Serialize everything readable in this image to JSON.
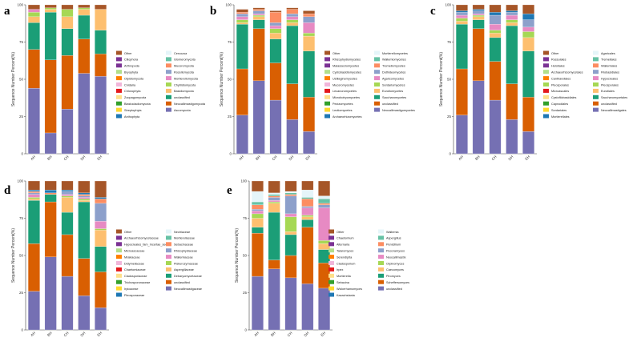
{
  "colors": {
    "Other": "#a65628",
    "c1": "#a6dba0",
    "c2": "#7b3294",
    "c3": "#b2df8a",
    "c4": "#ff7f00",
    "c5": "#f1b6da",
    "c6": "#e41a1c",
    "c7": "#fee08b",
    "c8": "#33a02c",
    "c9": "#ffd92f",
    "c10": "#1f78b4",
    "c11": "#e5f5f9",
    "c12": "#66c2a5",
    "c13": "#fc8d62",
    "c14": "#8da0cb",
    "c15": "#e78ac3",
    "c16": "#a6d854",
    "c17": "#fdbf6f",
    "c18": "#1b9e77",
    "c19": "#d95f02",
    "c20": "#7570b3"
  },
  "chart_data": [
    {
      "panel": "a",
      "type": "bar",
      "stacked": true,
      "title": "",
      "xlabel": "",
      "ylabel": "Sequence Number Percent(%)",
      "ylim": [
        0,
        100
      ],
      "yticks": [
        "0",
        "25",
        "50",
        "75",
        "100"
      ],
      "categories": [
        "AH",
        "BH",
        "CH",
        "DH",
        "EH"
      ],
      "legend_left": [
        "Other",
        "Ciliophora",
        "Arthropoda",
        "Bryophyta",
        "Olpidiomycota",
        "Cnidaria",
        "Chlorophyta",
        "Zoopagomycota",
        "Blastocladiomycota",
        "Streptophyta",
        "Anthophyta"
      ],
      "legend_right": [
        "Cercozoa",
        "Glomeromycota",
        "Mucoromycota",
        "Rozellomycota",
        "Mortierellomycota",
        "Chytridiomycota",
        "Basidiomycota",
        "unclassified",
        "Neocallimastigomycota",
        "Ascomycota"
      ],
      "series": [
        {
          "name": "Ascomycota",
          "values": [
            44,
            14,
            30,
            54,
            52
          ]
        },
        {
          "name": "Neocallimastigomycota",
          "values": [
            26,
            49,
            36,
            23,
            15
          ]
        },
        {
          "name": "unclassified",
          "values": [
            18,
            32,
            18,
            16,
            16
          ]
        },
        {
          "name": "Basidiomycota",
          "values": [
            4,
            2,
            8,
            4,
            14
          ]
        },
        {
          "name": "Chytridiomycota",
          "values": [
            3,
            1,
            5,
            1,
            0
          ]
        },
        {
          "name": "Mortierellomycota",
          "values": [
            2,
            0,
            0,
            0,
            0
          ]
        },
        {
          "name": "Other",
          "values": [
            3,
            2,
            3,
            2,
            3
          ]
        }
      ]
    },
    {
      "panel": "b",
      "type": "bar",
      "stacked": true,
      "title": "",
      "xlabel": "",
      "ylabel": "Sequence Number Percent(%)",
      "ylim": [
        0,
        100
      ],
      "yticks": [
        "0",
        "25",
        "50",
        "75",
        "100"
      ],
      "categories": [
        "AH",
        "BH",
        "CH",
        "DH",
        "EH"
      ],
      "legend_left": [
        "Other",
        "Rhizophydiomycetes",
        "Malasseziomycetes",
        "Cystobasidiomycetes",
        "Ustilaginomycetes",
        "Mucoromycetes",
        "Lecanoromycetes",
        "Microbotryomycetes",
        "Pezizomycetes",
        "Leotiomycetes",
        "Archaeorhizomycetes"
      ],
      "legend_right": [
        "Mortierellomycetes",
        "Wallemiomycetes",
        "Tremellomycetes",
        "Dothideomycetes",
        "Agaricomycetes",
        "Sordariomycetes",
        "Eurotiomycetes",
        "Saccharomycetes",
        "unclassified",
        "Neocallimastigomycetes"
      ],
      "series": [
        {
          "name": "Neocallimastigomycetes",
          "values": [
            26,
            49,
            36,
            23,
            15
          ]
        },
        {
          "name": "unclassified",
          "values": [
            31,
            35,
            25,
            24,
            23
          ]
        },
        {
          "name": "Saccharomycetes",
          "values": [
            30,
            6,
            16,
            39,
            31
          ]
        },
        {
          "name": "Eurotiomycetes",
          "values": [
            1,
            2,
            4,
            2,
            10
          ]
        },
        {
          "name": "Sordariomycetes",
          "values": [
            2,
            1,
            3,
            2,
            2
          ]
        },
        {
          "name": "Agaricomycetes",
          "values": [
            2,
            1,
            2,
            2,
            7
          ]
        },
        {
          "name": "Dothideomycetes",
          "values": [
            2,
            2,
            2,
            2,
            4
          ]
        },
        {
          "name": "Tremellomycetes",
          "values": [
            1,
            1,
            7,
            3,
            2
          ]
        },
        {
          "name": "Other",
          "values": [
            2,
            1,
            1,
            1,
            2
          ]
        }
      ]
    },
    {
      "panel": "c",
      "type": "bar",
      "stacked": true,
      "title": "",
      "xlabel": "",
      "ylabel": "Sequence Number Percent(%)",
      "ylim": [
        0,
        100
      ],
      "yticks": [
        "0",
        "25",
        "50",
        "75",
        "100"
      ],
      "categories": [
        "AH",
        "BH",
        "CH",
        "DH",
        "EH"
      ],
      "legend_left": [
        "Other",
        "Russulales",
        "Helotiales",
        "Archaeorhizomycetales",
        "Cantharellales",
        "Pleosporales",
        "Microascales",
        "Cystofilobasidiales",
        "Capnodiales",
        "Sordariales",
        "Mortierellales"
      ],
      "legend_right": [
        "Agaricales",
        "Tremellales",
        "Wallemiales",
        "Filobasidiales",
        "Hypocreales",
        "Pleosporales",
        "Eurotiales",
        "Saccharomycetales",
        "unclassified",
        "Neocallimastigales"
      ],
      "series": [
        {
          "name": "Neocallimastigales",
          "values": [
            26,
            49,
            36,
            23,
            15
          ]
        },
        {
          "name": "unclassified",
          "values": [
            31,
            35,
            26,
            24,
            23
          ]
        },
        {
          "name": "Saccharomycetales",
          "values": [
            30,
            6,
            16,
            39,
            31
          ]
        },
        {
          "name": "Eurotiales",
          "values": [
            2,
            2,
            3,
            2,
            9
          ]
        },
        {
          "name": "Pleosporales",
          "values": [
            2,
            1,
            2,
            2,
            4
          ]
        },
        {
          "name": "Hypocreales",
          "values": [
            2,
            1,
            4,
            3,
            3
          ]
        },
        {
          "name": "Filobasidiales",
          "values": [
            2,
            2,
            6,
            2,
            5
          ]
        },
        {
          "name": "Mortierellales",
          "values": [
            1,
            1,
            2,
            1,
            4
          ]
        },
        {
          "name": "Other",
          "values": [
            4,
            3,
            5,
            4,
            6
          ]
        }
      ]
    },
    {
      "panel": "d",
      "type": "bar",
      "stacked": true,
      "title": "",
      "xlabel": "",
      "ylabel": "Sequence Number Percent(%)",
      "ylim": [
        0,
        100
      ],
      "yticks": [
        "0",
        "25",
        "50",
        "75",
        "100"
      ],
      "categories": [
        "AH",
        "BH",
        "CH",
        "DH",
        "EH"
      ],
      "legend_left": [
        "Other",
        "Archaeorhizomycetaceae",
        "Hypocreales_fam_Incertae_sedis",
        "Microascaceae",
        "Mrakiaceae",
        "Didymellaceae",
        "Chaetomiaceae",
        "Cladosporiaceae",
        "Trichosporonaceae",
        "Irpicaceae",
        "Pleosporaceae"
      ],
      "legend_right": [
        "Nectriaceae",
        "Mortierellaceae",
        "Sebacinaceae",
        "Rhizophydiaceae",
        "Wallemiaceae",
        "Piskurozymaceae",
        "Aspergillaceae",
        "Debaryomycetaceae",
        "unclassified",
        "Neocallimastigaceae"
      ],
      "series": [
        {
          "name": "Neocallimastigaceae",
          "values": [
            26,
            49,
            36,
            23,
            15
          ]
        },
        {
          "name": "unclassified",
          "values": [
            32,
            37,
            28,
            25,
            24
          ]
        },
        {
          "name": "Debaryomycetaceae",
          "values": [
            29,
            5,
            15,
            38,
            17
          ]
        },
        {
          "name": "Aspergillaceae",
          "values": [
            1,
            0,
            10,
            1,
            11
          ]
        },
        {
          "name": "Piskurozymaceae",
          "values": [
            1,
            0,
            1,
            1,
            1
          ]
        },
        {
          "name": "Wallemiaceae",
          "values": [
            2,
            0,
            1,
            1,
            5
          ]
        },
        {
          "name": "Rhizophydiaceae",
          "values": [
            1,
            0,
            2,
            1,
            12
          ]
        },
        {
          "name": "Sebacinaceae",
          "values": [
            1,
            1,
            0,
            1,
            3
          ]
        },
        {
          "name": "Pleosporaceae",
          "values": [
            1,
            2,
            1,
            1,
            1
          ]
        },
        {
          "name": "Other",
          "values": [
            6,
            6,
            6,
            8,
            11
          ]
        }
      ]
    },
    {
      "panel": "e",
      "type": "bar",
      "stacked": true,
      "title": "",
      "xlabel": "",
      "ylabel": "Sequence Number Percent(%)",
      "ylim": [
        0,
        100
      ],
      "yticks": [
        "0",
        "25",
        "50",
        "75",
        "100"
      ],
      "categories": [
        "AH",
        "BH",
        "CH",
        "DH",
        "EH"
      ],
      "legend_left": [
        "Other",
        "Chaetomium",
        "Alternaria",
        "Talaromyces",
        "Serendipita",
        "Cladosporium",
        "Irpex",
        "Mortierella",
        "Sebacina",
        "Wickerhamomyces",
        "Kazachstania"
      ],
      "legend_right": [
        "Wallemia",
        "Aspergillus",
        "Penicillium",
        "Pecoramyces",
        "Neocallimastix",
        "Orpinomyces",
        "Caecomyces",
        "Piromyces",
        "Scheffersomyces",
        "unclassified"
      ],
      "series": [
        {
          "name": "unclassified",
          "values": [
            36,
            41,
            35,
            31,
            28
          ]
        },
        {
          "name": "Scheffersomyces",
          "values": [
            29,
            6,
            15,
            38,
            17
          ]
        },
        {
          "name": "Piromyces",
          "values": [
            4,
            32,
            14,
            5,
            9
          ]
        },
        {
          "name": "Caecomyces",
          "values": [
            6,
            6,
            2,
            2,
            4
          ]
        },
        {
          "name": "Orpinomyces",
          "values": [
            3,
            1,
            10,
            1,
            2
          ]
        },
        {
          "name": "Neocallimastix",
          "values": [
            2,
            1,
            2,
            5,
            22
          ]
        },
        {
          "name": "Pecoramyces",
          "values": [
            1,
            2,
            12,
            1,
            2
          ]
        },
        {
          "name": "Penicillium",
          "values": [
            3,
            1,
            1,
            5,
            1
          ]
        },
        {
          "name": "Aspergillus",
          "values": [
            2,
            1,
            1,
            1,
            3
          ]
        },
        {
          "name": "Wallemia",
          "values": [
            7,
            1,
            1,
            5,
            2
          ]
        },
        {
          "name": "Other",
          "values": [
            7,
            8,
            7,
            6,
            10
          ]
        }
      ]
    }
  ]
}
